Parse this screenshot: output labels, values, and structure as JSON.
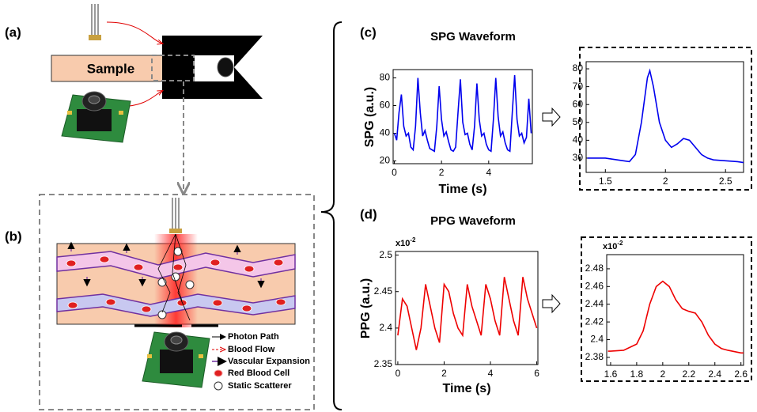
{
  "panel_labels": [
    "(a)",
    "(b)",
    "(c)",
    "(d)"
  ],
  "diagram": {
    "sample_label": "Sample",
    "legend": [
      "Photon Path",
      "Blood Flow",
      "Vascular Expansion",
      "Red Blood Cell",
      "Static Scatterer"
    ]
  },
  "chart_data": [
    {
      "type": "line",
      "title": "SPG Waveform",
      "x_label": "Time (s)",
      "y_label": "SPG (a.u.)",
      "color": "#0000ee",
      "xlim": [
        -0.05,
        5.85
      ],
      "xticks": [
        0,
        2,
        4
      ],
      "ylim": [
        18,
        86
      ],
      "yticks": [
        20,
        40,
        60,
        80
      ],
      "x": [
        0,
        0.1,
        0.2,
        0.3,
        0.4,
        0.5,
        0.6,
        0.7,
        0.8,
        0.9,
        1.0,
        1.1,
        1.2,
        1.3,
        1.4,
        1.5,
        1.6,
        1.7,
        1.8,
        1.9,
        2.0,
        2.1,
        2.2,
        2.3,
        2.4,
        2.5,
        2.6,
        2.7,
        2.8,
        2.9,
        3.0,
        3.1,
        3.2,
        3.3,
        3.4,
        3.5,
        3.6,
        3.7,
        3.8,
        3.9,
        4.0,
        4.1,
        4.2,
        4.3,
        4.4,
        4.5,
        4.6,
        4.7,
        4.8,
        4.9,
        5.0,
        5.1,
        5.2,
        5.3,
        5.4,
        5.5,
        5.6,
        5.7,
        5.8
      ],
      "values": [
        40,
        35,
        55,
        68,
        45,
        38,
        40,
        30,
        28,
        45,
        80,
        55,
        38,
        42,
        35,
        29,
        28,
        27,
        45,
        74,
        50,
        38,
        41,
        34,
        28,
        27,
        30,
        55,
        79,
        48,
        39,
        40,
        32,
        28,
        45,
        76,
        50,
        38,
        40,
        32,
        28,
        27,
        50,
        80,
        52,
        38,
        41,
        33,
        28,
        27,
        55,
        82,
        50,
        38,
        40,
        33,
        37,
        65,
        40
      ]
    },
    {
      "type": "line",
      "color": "#0000ee",
      "xlim": [
        1.34,
        2.65
      ],
      "xticks": [
        1.5,
        2,
        2.5
      ],
      "ylim": [
        22,
        84
      ],
      "yticks": [
        30,
        40,
        50,
        60,
        70,
        80
      ],
      "x": [
        1.35,
        1.4,
        1.45,
        1.5,
        1.55,
        1.6,
        1.65,
        1.7,
        1.75,
        1.8,
        1.85,
        1.87,
        1.9,
        1.95,
        2.0,
        2.05,
        2.1,
        2.15,
        2.2,
        2.25,
        2.3,
        2.35,
        2.4,
        2.5,
        2.6,
        2.65
      ],
      "values": [
        30,
        30,
        30,
        30,
        29.5,
        29,
        28.5,
        28,
        32,
        50,
        75,
        79,
        70,
        50,
        40,
        36,
        38,
        41,
        40,
        36,
        32,
        30,
        29,
        28.5,
        28,
        27.5
      ]
    },
    {
      "type": "line",
      "title": "PPG Waveform",
      "x_label": "Time (s)",
      "y_label": "PPG (a.u.)",
      "color": "#ee0000",
      "y_multiplier": {
        "base": "x10",
        "exponent": "-2"
      },
      "xlim": [
        -0.1,
        6.05
      ],
      "xticks": [
        0,
        2,
        4,
        6
      ],
      "ylim": [
        2.35,
        2.505
      ],
      "yticks": [
        2.35,
        2.4,
        2.45,
        2.5
      ],
      "x": [
        0,
        0.2,
        0.4,
        0.6,
        0.8,
        1.0,
        1.2,
        1.4,
        1.6,
        1.8,
        2.0,
        2.2,
        2.4,
        2.6,
        2.8,
        3.0,
        3.2,
        3.4,
        3.6,
        3.8,
        4.0,
        4.2,
        4.4,
        4.6,
        4.8,
        5.0,
        5.2,
        5.4,
        5.6,
        5.8,
        6.0
      ],
      "values": [
        2.39,
        2.44,
        2.43,
        2.4,
        2.37,
        2.4,
        2.46,
        2.43,
        2.4,
        2.38,
        2.46,
        2.45,
        2.42,
        2.4,
        2.39,
        2.46,
        2.43,
        2.41,
        2.39,
        2.46,
        2.44,
        2.41,
        2.39,
        2.47,
        2.44,
        2.41,
        2.39,
        2.47,
        2.44,
        2.42,
        2.4
      ]
    },
    {
      "type": "line",
      "color": "#ee0000",
      "y_multiplier": {
        "base": "x10",
        "exponent": "-2"
      },
      "xlim": [
        1.57,
        2.62
      ],
      "xticks": [
        1.6,
        1.8,
        2,
        2.2,
        2.4,
        2.6
      ],
      "ylim": [
        2.371,
        2.496
      ],
      "yticks": [
        2.38,
        2.4,
        2.42,
        2.44,
        2.46,
        2.48
      ],
      "x": [
        1.58,
        1.6,
        1.7,
        1.8,
        1.85,
        1.9,
        1.95,
        2.0,
        2.05,
        2.1,
        2.15,
        2.2,
        2.25,
        2.3,
        2.35,
        2.4,
        2.45,
        2.5,
        2.6,
        2.62
      ],
      "values": [
        2.387,
        2.387,
        2.388,
        2.395,
        2.41,
        2.44,
        2.46,
        2.466,
        2.46,
        2.445,
        2.435,
        2.432,
        2.43,
        2.42,
        2.405,
        2.395,
        2.39,
        2.388,
        2.385,
        2.385
      ]
    }
  ]
}
